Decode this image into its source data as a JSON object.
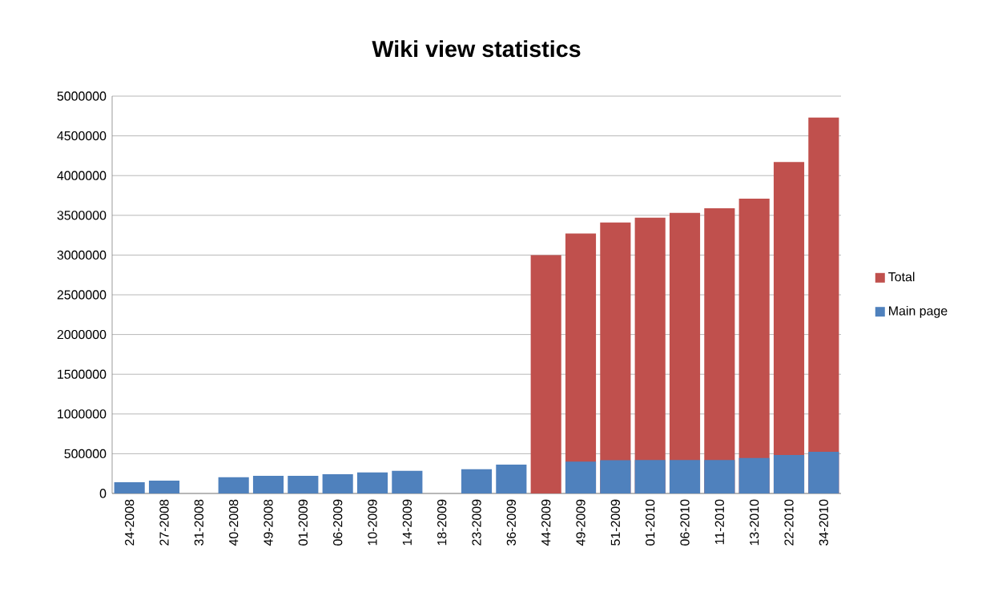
{
  "chart_data": {
    "type": "bar",
    "title": "Wiki  view statistics",
    "categories": [
      "24-2008",
      "27-2008",
      "31-2008",
      "40-2008",
      "49-2008",
      "01-2009",
      "06-2009",
      "10-2009",
      "14-2009",
      "18-2009",
      "23-2009",
      "36-2009",
      "44-2009",
      "49-2009",
      "51-2009",
      "01-2010",
      "06-2010",
      "11-2010",
      "13-2010",
      "22-2010",
      "34-2010"
    ],
    "series": [
      {
        "name": "Total",
        "color": "#c0504d",
        "values": [
          null,
          null,
          null,
          null,
          null,
          null,
          null,
          null,
          null,
          null,
          null,
          null,
          3000000,
          3270000,
          3410000,
          3470000,
          3530000,
          3590000,
          3710000,
          4170000,
          4730000
        ]
      },
      {
        "name": "Main page",
        "color": "#4f81bd",
        "values": [
          142000,
          162000,
          null,
          203000,
          223000,
          223000,
          243000,
          264000,
          284000,
          null,
          304000,
          362000,
          null,
          400000,
          419000,
          420000,
          420000,
          420000,
          445000,
          485000,
          525000
        ]
      }
    ],
    "ylim": [
      0,
      5000000
    ],
    "yticks": [
      0,
      500000,
      1000000,
      1500000,
      2000000,
      2500000,
      3000000,
      3500000,
      4000000,
      4500000,
      5000000
    ],
    "grid": "y",
    "legend": "right"
  }
}
